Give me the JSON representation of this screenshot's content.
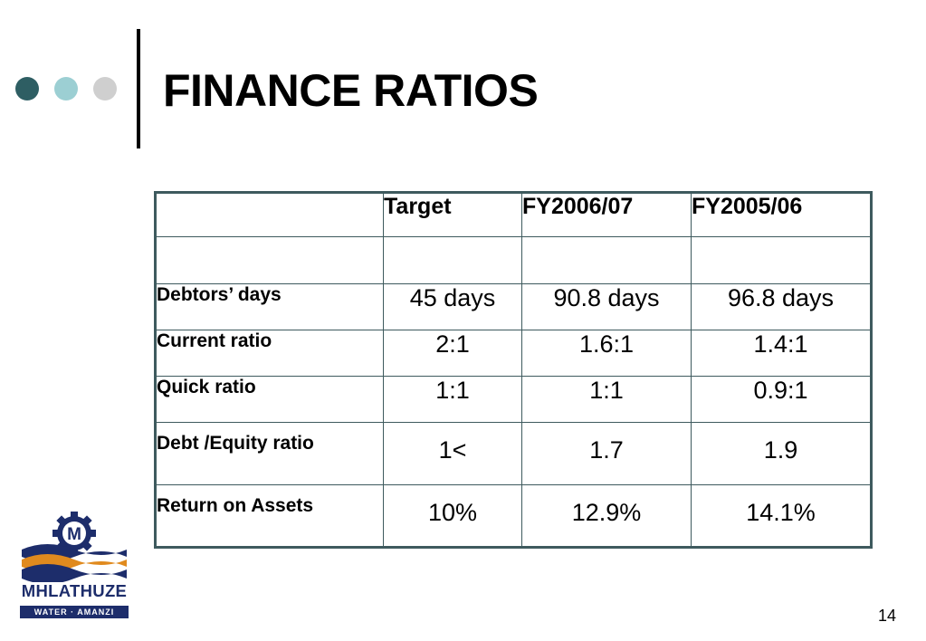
{
  "slide": {
    "title": "FINANCE RATIOS",
    "page_number": "14"
  },
  "table": {
    "headers": [
      "",
      "Target",
      "FY2006/07",
      "FY2005/06"
    ],
    "rows": [
      {
        "label": "",
        "values": [
          "",
          "",
          ""
        ]
      },
      {
        "label": "Debtors’ days",
        "values": [
          "45 days",
          "90.8 days",
          "96.8 days"
        ]
      },
      {
        "label": "Current ratio",
        "values": [
          "2:1",
          "1.6:1",
          "1.4:1"
        ]
      },
      {
        "label": "Quick ratio",
        "values": [
          "1:1",
          "1:1",
          "0.9:1"
        ]
      },
      {
        "label": "Debt /Equity ratio",
        "values": [
          "1<",
          "1.7",
          "1.9"
        ]
      },
      {
        "label": "Return on Assets",
        "values": [
          "10%",
          "12.9%",
          "14.1%"
        ]
      }
    ]
  },
  "logo": {
    "name": "MHLATHUZE",
    "tagline": "WATER · AMANZI",
    "colors": {
      "navy": "#1d2d6b",
      "orange": "#e08a1e"
    }
  },
  "theme": {
    "dot_colors": [
      "#2e5e63",
      "#9ccfd3",
      "#cfcfcf"
    ],
    "table_border": "#3e5a5e"
  }
}
